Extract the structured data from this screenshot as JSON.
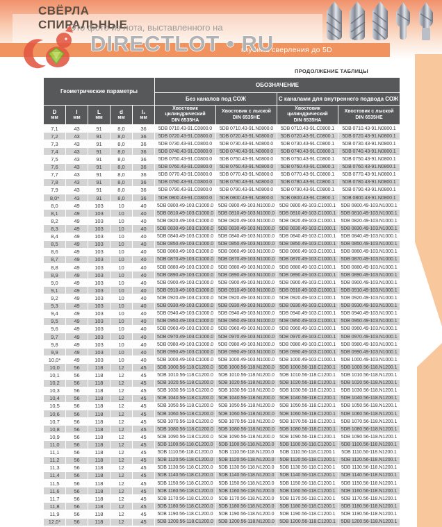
{
  "colors": {
    "header_orange": "#f0935e",
    "band_peach": "#f9c79c",
    "table_header_bg": "#57585a",
    "row_gray": "#d3d3d3",
    "squirrel_red": "#e25742",
    "gem_green": "#9ccc3c"
  },
  "header": {
    "title_line1": "СВЁРЛА",
    "title_line2": "СПИРАЛЬНЫЕ",
    "subtitle_visible": "глубина сверления до 5D"
  },
  "watermark": {
    "line1": "Это фото из лота, выставленного на",
    "brand": "DIRECTLOT • RU"
  },
  "table_note": "ПРОДОЛЖЕНИЕ ТАБЛИЦЫ",
  "table": {
    "group_headers": {
      "geometry": "Геометрические параметры",
      "designation": "ОБОЗНАЧЕНИЕ",
      "without_coolant": "Без каналов под СОЖ",
      "with_coolant": "С каналами для внутреннего подвода СОЖ"
    },
    "columns": [
      {
        "key": "D",
        "label": "D",
        "unit": "мм"
      },
      {
        "key": "l",
        "label": "l",
        "unit": "мм"
      },
      {
        "key": "L",
        "label": "L",
        "unit": "мм"
      },
      {
        "key": "d",
        "label": "d",
        "unit": "мм"
      },
      {
        "key": "l1",
        "label": "l₁",
        "unit": "мм"
      },
      {
        "key": "shank-cyl-1",
        "label": "Хвостовик цилиндрический",
        "din": "DIN 6535HA"
      },
      {
        "key": "shank-flat-1",
        "label": "Хвостовик с лыской",
        "din": "DIN 6535HE"
      },
      {
        "key": "shank-cyl-2",
        "label": "Хвостовик цилиндрический",
        "din": "DIN 6535HA"
      },
      {
        "key": "shank-flat-2",
        "label": "Хвостовик с лыской",
        "din": "DIN 6535HE"
      }
    ],
    "rows": [
      [
        "7,1",
        "43",
        "91",
        "8,0",
        "36",
        "5DB 0710.43-91.C0800.0",
        "5DB 0710.43-91.N0800.0",
        "5DB 0710.43-91.C0800.1",
        "5DB 0710.43-91.N0800.1"
      ],
      [
        "7,2",
        "43",
        "91",
        "8,0",
        "36",
        "5DB 0720.43-91.C0800.0",
        "5DB 0720.43-91.N0800.0",
        "5DB 0720.43-91.C0800.1",
        "5DB 0720.43-91.N0800.1"
      ],
      [
        "7,3",
        "43",
        "91",
        "8,0",
        "36",
        "5DB 0730.43-91.C0800.0",
        "5DB 0730.43-91.N0800.0",
        "5DB 0730.43-91.C0800.1",
        "5DB 0730.43-91.N0800.1"
      ],
      [
        "7,4",
        "43",
        "91",
        "8,0",
        "36",
        "5DB 0740.43-91.C0800.0",
        "5DB 0740.43-91.N0800.0",
        "5DB 0740.43-91.C0800.1",
        "5DB 0740.43-91.N0800.1"
      ],
      [
        "7,5",
        "43",
        "91",
        "8,0",
        "36",
        "5DB 0750.43-91.C0800.0",
        "5DB 0750.43-91.N0800.0",
        "5DB 0750.43-91.C0800.1",
        "5DB 0750.43-91.N0800.1"
      ],
      [
        "7,6",
        "43",
        "91",
        "8,0",
        "36",
        "5DB 0760.43-91.C0800.0",
        "5DB 0760.43-91.N0800.0",
        "5DB 0760.43-91.C0800.1",
        "5DB 0760.43-91.N0800.1"
      ],
      [
        "7,7",
        "43",
        "91",
        "8,0",
        "36",
        "5DB 0770.43-91.C0800.0",
        "5DB 0770.43-91.N0800.0",
        "5DB 0770.43-91.C0800.1",
        "5DB 0770.43-91.N0800.1"
      ],
      [
        "7,8",
        "43",
        "91",
        "8,0",
        "36",
        "5DB 0780.43-91.C0800.0",
        "5DB 0780.43-91.N0800.0",
        "5DB 0780.43-91.C0800.1",
        "5DB 0780.43-91.N0800.1"
      ],
      [
        "7,9",
        "43",
        "91",
        "8,0",
        "36",
        "5DB 0790.43-91.C0800.0",
        "5DB 0790.43-91.N0800.0",
        "5DB 0790.43-91.C0800.1",
        "5DB 0790.43-91.N0800.1"
      ],
      [
        "8,0*",
        "43",
        "91",
        "8,0",
        "36",
        "5DB 0800.43-91.C0800.0",
        "5DB 0800.43-91.N0800.0",
        "5DB 0800.43-91.C0800.1",
        "5DB 0800.43-91.N0800.1"
      ],
      [
        "8,0",
        "49",
        "103",
        "10",
        "40",
        "5DB 0800.49-103.C1000.0",
        "5DB 0800.49-103.N1000.0",
        "5DB 0800.49-103.C1000.1",
        "5DB 0800.49-103.N1000.1"
      ],
      [
        "8,1",
        "49",
        "103",
        "10",
        "40",
        "5DB 0810.49-103.C1000.0",
        "5DB 0810.49-103.N1000.0",
        "5DB 0810.49-103.C1000.1",
        "5DB 0810.49-103.N1000.1"
      ],
      [
        "8,2",
        "49",
        "103",
        "10",
        "40",
        "5DB 0820.49-103.C1000.0",
        "5DB 0820.49-103.N1000.0",
        "5DB 0820.49-103.C1000.1",
        "5DB 0820.49-103.N1000.1"
      ],
      [
        "8,3",
        "49",
        "103",
        "10",
        "40",
        "5DB 0830.49-103.C1000.0",
        "5DB 0830.49-103.N1000.0",
        "5DB 0830.49-103.C1000.1",
        "5DB 0830.49-103.N1000.1"
      ],
      [
        "8,4",
        "49",
        "103",
        "10",
        "40",
        "5DB 0840.49-103.C1000.0",
        "5DB 0840.49-103.N1000.0",
        "5DB 0840.49-103.C1000.1",
        "5DB 0840.49-103.N1000.1"
      ],
      [
        "8,5",
        "49",
        "103",
        "10",
        "40",
        "5DB 0850.49-103.C1000.0",
        "5DB 0850.49-103.N1000.0",
        "5DB 0850.49-103.C1000.1",
        "5DB 0850.49-103.N1000.1"
      ],
      [
        "8,6",
        "49",
        "103",
        "10",
        "40",
        "5DB 0860.49-103.C1000.0",
        "5DB 0860.49-103.N1000.0",
        "5DB 0860.49-103.C1000.1",
        "5DB 0860.49-103.N1000.1"
      ],
      [
        "8,7",
        "49",
        "103",
        "10",
        "40",
        "5DB 0870.49-103.C1000.0",
        "5DB 0870.49-103.N1000.0",
        "5DB 0870.49-103.C1000.1",
        "5DB 0870.49-103.N1000.1"
      ],
      [
        "8,8",
        "49",
        "103",
        "10",
        "40",
        "5DB 0880.49-103.C1000.0",
        "5DB 0880.49-103.N1000.0",
        "5DB 0880.49-103.C1000.1",
        "5DB 0880.49-103.N1000.1"
      ],
      [
        "8,9",
        "49",
        "103",
        "10",
        "40",
        "5DB 0890.49-103.C1000.0",
        "5DB 0890.49-103.N1000.0",
        "5DB 0890.49-103.C1000.1",
        "5DB 0890.49-103.N1000.1"
      ],
      [
        "9,0",
        "49",
        "103",
        "10",
        "40",
        "5DB 0900.49-103.C1000.0",
        "5DB 0900.49-103.N1000.0",
        "5DB 0900.49-103.C1000.1",
        "5DB 0900.49-103.N1000.1"
      ],
      [
        "9,1",
        "49",
        "103",
        "10",
        "40",
        "5DB 0910.49-103.C1000.0",
        "5DB 0910.49-103.N1000.0",
        "5DB 0910.49-103.C1000.1",
        "5DB 0910.49-103.N1000.1"
      ],
      [
        "9,2",
        "49",
        "103",
        "10",
        "40",
        "5DB 0920.49-103.C1000.0",
        "5DB 0920.49-103.N1000.0",
        "5DB 0920.49-103.C1000.1",
        "5DB 0920.49-103.N1000.1"
      ],
      [
        "9,3",
        "49",
        "103",
        "10",
        "40",
        "5DB 0930.49-103.C1000.0",
        "5DB 0930.49-103.N1000.0",
        "5DB 0930.49-103.C1000.1",
        "5DB 0930.49-103.N1000.1"
      ],
      [
        "9,4",
        "49",
        "103",
        "10",
        "40",
        "5DB 0940.49-103.C1000.0",
        "5DB 0940.49-103.N1000.0",
        "5DB 0940.49-103.C1000.1",
        "5DB 0940.49-103.N1000.1"
      ],
      [
        "9,5",
        "49",
        "103",
        "10",
        "40",
        "5DB 0950.49-103.C1000.0",
        "5DB 0950.49-103.N1000.0",
        "5DB 0950.49-103.C1000.1",
        "5DB 0950.49-103.N1000.1"
      ],
      [
        "9,6",
        "49",
        "103",
        "10",
        "40",
        "5DB 0960.49-103.C1000.0",
        "5DB 0960.49-103.N1000.0",
        "5DB 0960.49-103.C1000.1",
        "5DB 0960.49-103.N1000.1"
      ],
      [
        "9,7",
        "49",
        "103",
        "10",
        "40",
        "5DB 0970.49-103.C1000.0",
        "5DB 0970.49-103.N1000.0",
        "5DB 0970.49-103.C1000.1",
        "5DB 0970.49-103.N1000.1"
      ],
      [
        "9,8",
        "49",
        "103",
        "10",
        "40",
        "5DB 0980.49-103.C1000.0",
        "5DB 0980.49-103.N1000.0",
        "5DB 0980.49-103.C1000.1",
        "5DB 0980.49-103.N1000.1"
      ],
      [
        "9,9",
        "49",
        "103",
        "10",
        "40",
        "5DB 0990.49-103.C1000.0",
        "5DB 0990.49-103.N1000.0",
        "5DB 0990.49-103.C1000.1",
        "5DB 0990.49-103.N1000.1"
      ],
      [
        "10,0*",
        "49",
        "103",
        "10",
        "40",
        "5DB 1000.49-103.C1000.0",
        "5DB 1000.49-103.N1000.0",
        "5DB 1000.49-103.C1000.1",
        "5DB 1000.49-103.N1000.1"
      ],
      [
        "10,0",
        "56",
        "118",
        "12",
        "45",
        "5DB 1000.56-118.C1200.0",
        "5DB 1000.56-118.N1200.0",
        "5DB 1000.56-118.C1200.1",
        "5DB 1000.56-118.N1200.1"
      ],
      [
        "10,1",
        "56",
        "118",
        "12",
        "45",
        "5DB 1010.56-118.C1200.0",
        "5DB 1010.56-118.N1200.0",
        "5DB 1010.56-118.C1200.1",
        "5DB 1010.56-118.N1200.1"
      ],
      [
        "10,2",
        "56",
        "118",
        "12",
        "45",
        "5DB 1020.56-118.C1200.0",
        "5DB 1020.56-118.N1200.0",
        "5DB 1020.56-118.C1200.1",
        "5DB 1020.56-118.N1200.1"
      ],
      [
        "10,3",
        "56",
        "118",
        "12",
        "45",
        "5DB 1030.56-118.C1200.0",
        "5DB 1030.56-118.N1200.0",
        "5DB 1030.56-118.C1200.1",
        "5DB 1030.56-118.N1200.1"
      ],
      [
        "10,4",
        "56",
        "118",
        "12",
        "45",
        "5DB 1040.56-118.C1200.0",
        "5DB 1040.56-118.N1200.0",
        "5DB 1040.56-118.C1200.1",
        "5DB 1040.56-118.N1200.1"
      ],
      [
        "10,5",
        "56",
        "118",
        "12",
        "45",
        "5DB 1050.56-118.C1200.0",
        "5DB 1050.56-118.N1200.0",
        "5DB 1050.56-118.C1200.1",
        "5DB 1050.56-118.N1200.1"
      ],
      [
        "10,6",
        "56",
        "118",
        "12",
        "45",
        "5DB 1060.56-118.C1200.0",
        "5DB 1060.56-118.N1200.0",
        "5DB 1060.56-118.C1200.1",
        "5DB 1060.56-118.N1200.1"
      ],
      [
        "10,7",
        "56",
        "118",
        "12",
        "45",
        "5DB 1070.56-118.C1200.0",
        "5DB 1070.56-118.N1200.0",
        "5DB 1070.56-118.C1200.1",
        "5DB 1070.56-118.N1200.1"
      ],
      [
        "10,8",
        "56",
        "118",
        "12",
        "45",
        "5DB 1080.56-118.C1200.0",
        "5DB 1080.56-118.N1200.0",
        "5DB 1080.56-118.C1200.1",
        "5DB 1080.56-118.N1200.1"
      ],
      [
        "10,9",
        "56",
        "118",
        "12",
        "45",
        "5DB 1090.56-118.C1200.0",
        "5DB 1090.56-118.N1200.0",
        "5DB 1090.56-118.C1200.1",
        "5DB 1090.56-118.N1200.1"
      ],
      [
        "11,0",
        "56",
        "118",
        "12",
        "45",
        "5DB 1100.56-118.C1200.0",
        "5DB 1100.56-118.N1200.0",
        "5DB 1100.56-118.C1200.1",
        "5DB 1100.56-118.N1200.1"
      ],
      [
        "11,1",
        "56",
        "118",
        "12",
        "45",
        "5DB 1110.56-118.C1200.0",
        "5DB 1110.56-118.N1200.0",
        "5DB 1110.56-118.C1200.1",
        "5DB 1110.56-118.N1200.1"
      ],
      [
        "11,2",
        "56",
        "118",
        "12",
        "45",
        "5DB 1120.56-118.C1200.0",
        "5DB 1120.56-118.N1200.0",
        "5DB 1120.56-118.C1200.1",
        "5DB 1120.56-118.N1200.1"
      ],
      [
        "11,3",
        "56",
        "118",
        "12",
        "45",
        "5DB 1130.56-118.C1200.0",
        "5DB 1130.56-118.N1200.0",
        "5DB 1130.56-118.C1200.1",
        "5DB 1130.56-118.N1200.1"
      ],
      [
        "11,4",
        "56",
        "118",
        "12",
        "45",
        "5DB 1140.56-118.C1200.0",
        "5DB 1140.56-118.N1200.0",
        "5DB 1140.56-118.C1200.1",
        "5DB 1140.56-118.N1200.1"
      ],
      [
        "11,5",
        "56",
        "118",
        "12",
        "45",
        "5DB 1150.56-118.C1200.0",
        "5DB 1150.56-118.N1200.0",
        "5DB 1150.56-118.C1200.1",
        "5DB 1150.56-118.N1200.1"
      ],
      [
        "11,6",
        "56",
        "118",
        "12",
        "45",
        "5DB 1160.56-118.C1200.0",
        "5DB 1160.56-118.N1200.0",
        "5DB 1160.56-118.C1200.1",
        "5DB 1160.56-118.N1200.1"
      ],
      [
        "11,7",
        "56",
        "118",
        "12",
        "45",
        "5DB 1170.56-118.C1200.0",
        "5DB 1170.56-118.N1200.0",
        "5DB 1170.56-118.C1200.1",
        "5DB 1170.56-118.N1200.1"
      ],
      [
        "11,8",
        "56",
        "118",
        "12",
        "45",
        "5DB 1180.56-118.C1200.0",
        "5DB 1180.56-118.N1200.0",
        "5DB 1180.56-118.C1200.1",
        "5DB 1180.56-118.N1200.1"
      ],
      [
        "11,9",
        "56",
        "118",
        "12",
        "45",
        "5DB 1190.56-118.C1200.0",
        "5DB 1190.56-118.N1200.0",
        "5DB 1190.56-118.C1200.1",
        "5DB 1190.56-118.N1200.1"
      ],
      [
        "12,0*",
        "56",
        "118",
        "12",
        "45",
        "5DB 1200.56-118.C1200.0",
        "5DB 1200.56-118.N1200.0",
        "5DB 1200.56-118.C1200.1",
        "5DB 1200.56-118.N1200.1"
      ]
    ]
  }
}
